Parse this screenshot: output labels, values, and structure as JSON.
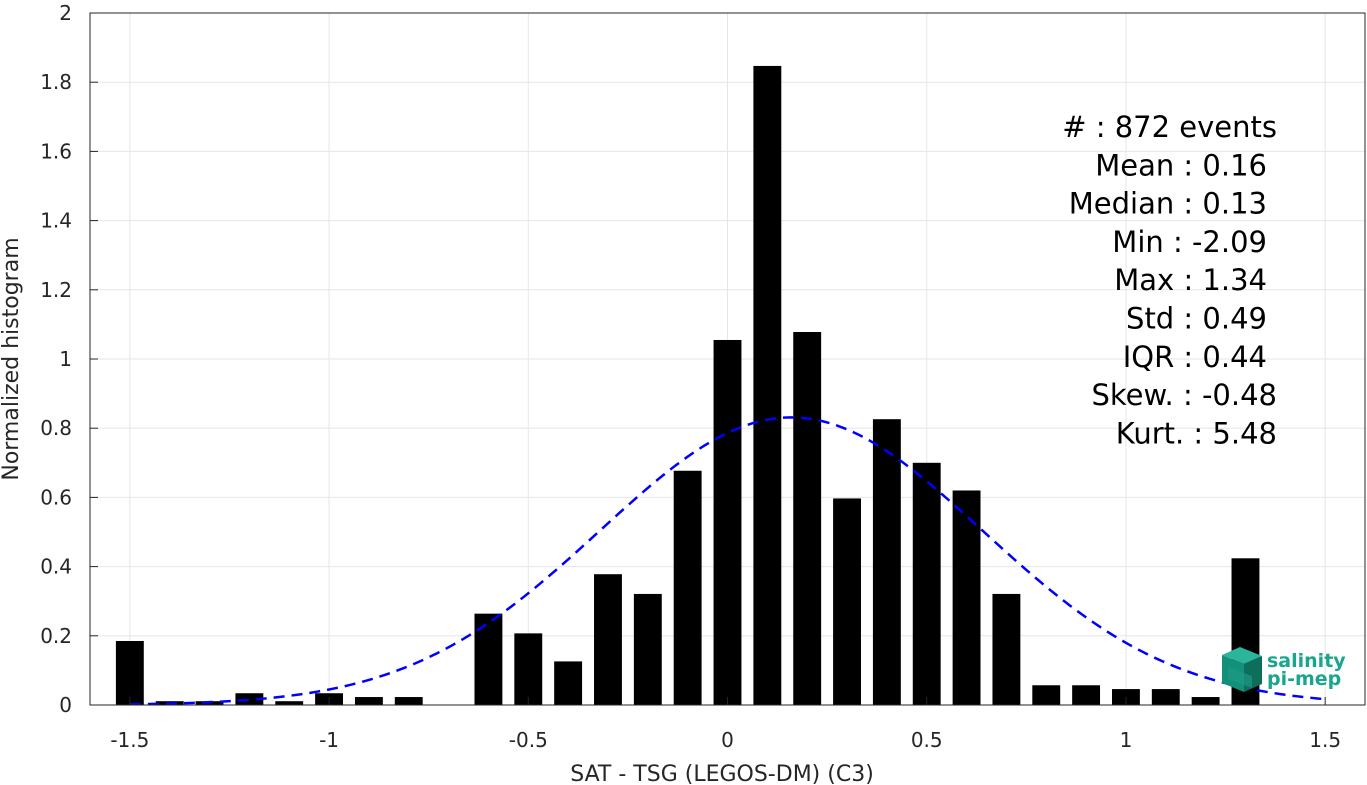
{
  "chart_data": {
    "type": "bar",
    "xlabel": "SAT - TSG (LEGOS-DM) (C3)",
    "ylabel": "Normalized histogram",
    "xlim": [
      -1.6,
      1.6
    ],
    "ylim": [
      0,
      2
    ],
    "xticks": [
      "-1.5",
      "-1",
      "-0.5",
      "0",
      "0.5",
      "1",
      "1.5"
    ],
    "xtick_values": [
      -1.5,
      -1,
      -0.5,
      0,
      0.5,
      1,
      1.5
    ],
    "yticks": [
      "0",
      "0.2",
      "0.4",
      "0.6",
      "0.8",
      "1",
      "1.2",
      "1.4",
      "1.6",
      "1.8",
      "2"
    ],
    "ytick_values": [
      0,
      0.2,
      0.4,
      0.6,
      0.8,
      1,
      1.2,
      1.4,
      1.6,
      1.8,
      2
    ],
    "grid": true,
    "bar_color": "#000000",
    "bins": [
      {
        "x": -1.5,
        "y": 0.185
      },
      {
        "x": -1.4,
        "y": 0.011
      },
      {
        "x": -1.3,
        "y": 0.011
      },
      {
        "x": -1.2,
        "y": 0.034
      },
      {
        "x": -1.1,
        "y": 0.011
      },
      {
        "x": -1.0,
        "y": 0.034
      },
      {
        "x": -0.9,
        "y": 0.023
      },
      {
        "x": -0.8,
        "y": 0.023
      },
      {
        "x": -0.6,
        "y": 0.264
      },
      {
        "x": -0.5,
        "y": 0.207
      },
      {
        "x": -0.4,
        "y": 0.126
      },
      {
        "x": -0.3,
        "y": 0.378
      },
      {
        "x": -0.2,
        "y": 0.321
      },
      {
        "x": -0.1,
        "y": 0.677
      },
      {
        "x": 0.0,
        "y": 1.055
      },
      {
        "x": 0.1,
        "y": 1.847
      },
      {
        "x": 0.2,
        "y": 1.078
      },
      {
        "x": 0.3,
        "y": 0.597
      },
      {
        "x": 0.4,
        "y": 0.826
      },
      {
        "x": 0.5,
        "y": 0.7
      },
      {
        "x": 0.6,
        "y": 0.62
      },
      {
        "x": 0.7,
        "y": 0.321
      },
      {
        "x": 0.8,
        "y": 0.057
      },
      {
        "x": 0.9,
        "y": 0.057
      },
      {
        "x": 1.0,
        "y": 0.046
      },
      {
        "x": 1.1,
        "y": 0.046
      },
      {
        "x": 1.2,
        "y": 0.023
      },
      {
        "x": 1.3,
        "y": 0.424
      }
    ],
    "fit": {
      "type": "gaussian",
      "mean": 0.16,
      "std": 0.48,
      "x_range": [
        -1.5,
        1.5
      ],
      "color": "#0000ff",
      "style": "dashed"
    },
    "stats": [
      "#  : 872 events",
      "Mean : 0.16",
      "Median : 0.13",
      "Min : -2.09",
      "Max : 1.34",
      "Std : 0.49",
      "IQR : 0.44",
      "Skew. : -0.48",
      "Kurt. : 5.48"
    ]
  },
  "logo": {
    "line1": "salinity",
    "line2": "pi-mep",
    "color": "#1aa68e"
  }
}
